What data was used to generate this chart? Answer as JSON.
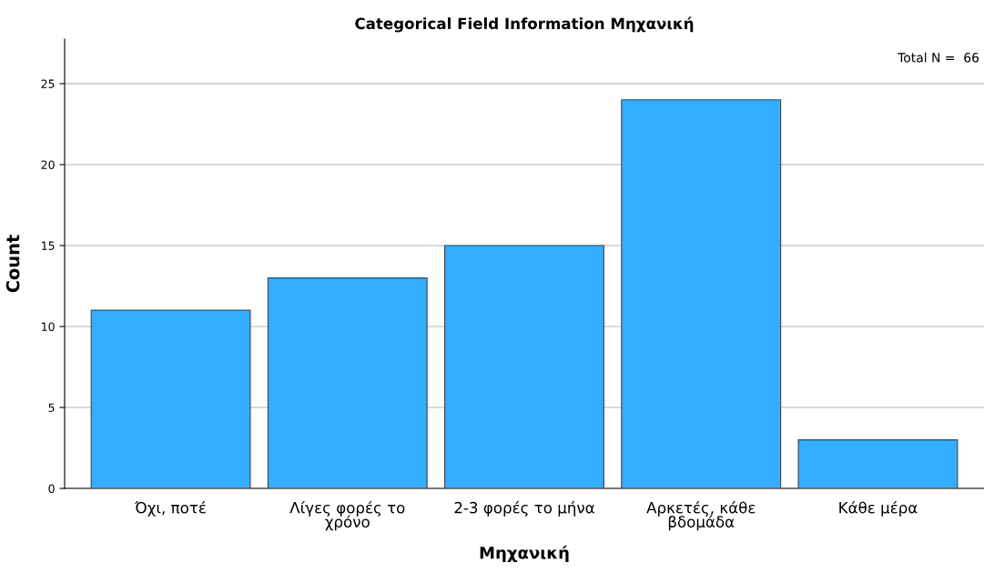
{
  "chart_data": {
    "type": "bar",
    "title": "Categorical Field Information Μηχανική",
    "xlabel": "Μηχανική",
    "ylabel": "Count",
    "categories": [
      "Όχι, ποτέ",
      "Λίγες φορές το\nχρόνο",
      "2-3 φορές το μήνα",
      "Αρκετές, κάθε\nβδομάδα",
      "Κάθε μέρα"
    ],
    "values": [
      11,
      13,
      15,
      24,
      3
    ],
    "color": "#33adff",
    "ylim": [
      0,
      27.75
    ],
    "yticks": [
      0,
      5,
      10,
      15,
      20,
      25
    ],
    "grid": "y",
    "annotations": [
      "Total N =  66"
    ]
  }
}
